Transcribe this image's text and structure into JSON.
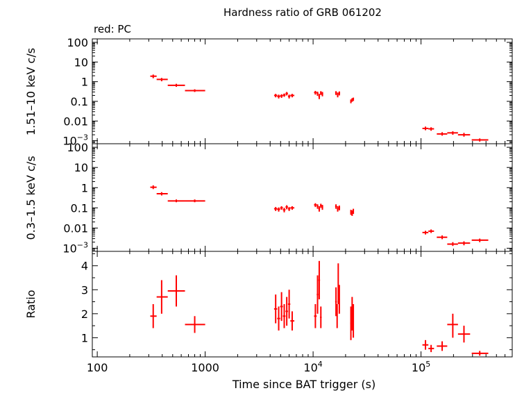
{
  "title": "Hardness ratio of GRB 061202",
  "annotation": "red: PC",
  "colors": {
    "data": "#ff0000",
    "axes": "#000000"
  },
  "chart_data": [
    {
      "type": "scatter",
      "panel": "hard",
      "ylabel": "1.51–10 keV c/s",
      "xscale": "log",
      "yscale": "log",
      "xlim": [
        90,
        700000
      ],
      "ylim": [
        0.0007,
        150
      ],
      "yticks": [
        {
          "v": 100,
          "base": "100",
          "sup": ""
        },
        {
          "v": 10,
          "base": "10",
          "sup": ""
        },
        {
          "v": 1,
          "base": "1",
          "sup": ""
        },
        {
          "v": 0.1,
          "base": "0.1",
          "sup": ""
        },
        {
          "v": 0.01,
          "base": "0.01",
          "sup": ""
        },
        {
          "v": 0.001,
          "base": "10",
          "sup": "−3"
        }
      ],
      "points": [
        {
          "x": 330,
          "xlo": 310,
          "xhi": 355,
          "y": 1.9,
          "ylo": 1.5,
          "yhi": 2.3
        },
        {
          "x": 395,
          "xlo": 355,
          "xhi": 450,
          "y": 1.3,
          "ylo": 1.05,
          "yhi": 1.55
        },
        {
          "x": 540,
          "xlo": 450,
          "xhi": 650,
          "y": 0.65,
          "ylo": 0.55,
          "yhi": 0.78
        },
        {
          "x": 800,
          "xlo": 650,
          "xhi": 1000,
          "y": 0.35,
          "ylo": 0.3,
          "yhi": 0.41
        },
        {
          "x": 4500,
          "xlo": 4350,
          "xhi": 4650,
          "y": 0.2,
          "ylo": 0.16,
          "yhi": 0.24
        },
        {
          "x": 4800,
          "xlo": 4650,
          "xhi": 4950,
          "y": 0.18,
          "ylo": 0.14,
          "yhi": 0.22
        },
        {
          "x": 5100,
          "xlo": 4950,
          "xhi": 5250,
          "y": 0.19,
          "ylo": 0.15,
          "yhi": 0.23
        },
        {
          "x": 5400,
          "xlo": 5250,
          "xhi": 5550,
          "y": 0.21,
          "ylo": 0.17,
          "yhi": 0.25
        },
        {
          "x": 5700,
          "xlo": 5550,
          "xhi": 5850,
          "y": 0.25,
          "ylo": 0.2,
          "yhi": 0.3
        },
        {
          "x": 6000,
          "xlo": 5850,
          "xhi": 6150,
          "y": 0.18,
          "ylo": 0.14,
          "yhi": 0.22
        },
        {
          "x": 6400,
          "xlo": 6150,
          "xhi": 6700,
          "y": 0.2,
          "ylo": 0.16,
          "yhi": 0.24
        },
        {
          "x": 10500,
          "xlo": 10200,
          "xhi": 10800,
          "y": 0.28,
          "ylo": 0.22,
          "yhi": 0.34
        },
        {
          "x": 11000,
          "xlo": 10800,
          "xhi": 11200,
          "y": 0.25,
          "ylo": 0.19,
          "yhi": 0.31
        },
        {
          "x": 11400,
          "xlo": 11200,
          "xhi": 11600,
          "y": 0.18,
          "ylo": 0.13,
          "yhi": 0.24
        },
        {
          "x": 11800,
          "xlo": 11600,
          "xhi": 12000,
          "y": 0.27,
          "ylo": 0.21,
          "yhi": 0.33
        },
        {
          "x": 12200,
          "xlo": 12000,
          "xhi": 12400,
          "y": 0.24,
          "ylo": 0.18,
          "yhi": 0.3
        },
        {
          "x": 16300,
          "xlo": 16000,
          "xhi": 16600,
          "y": 0.27,
          "ylo": 0.21,
          "yhi": 0.33
        },
        {
          "x": 16900,
          "xlo": 16600,
          "xhi": 17200,
          "y": 0.22,
          "ylo": 0.16,
          "yhi": 0.28
        },
        {
          "x": 17500,
          "xlo": 17200,
          "xhi": 17800,
          "y": 0.26,
          "ylo": 0.2,
          "yhi": 0.32
        },
        {
          "x": 22400,
          "xlo": 22100,
          "xhi": 22700,
          "y": 0.1,
          "ylo": 0.08,
          "yhi": 0.125
        },
        {
          "x": 23000,
          "xlo": 22700,
          "xhi": 23300,
          "y": 0.12,
          "ylo": 0.095,
          "yhi": 0.145
        },
        {
          "x": 23600,
          "xlo": 23300,
          "xhi": 23900,
          "y": 0.13,
          "ylo": 0.105,
          "yhi": 0.155
        },
        {
          "x": 110000,
          "xlo": 103000,
          "xhi": 117000,
          "y": 0.0042,
          "ylo": 0.0034,
          "yhi": 0.0052
        },
        {
          "x": 124000,
          "xlo": 117000,
          "xhi": 132000,
          "y": 0.004,
          "ylo": 0.0032,
          "yhi": 0.0048
        },
        {
          "x": 157000,
          "xlo": 140000,
          "xhi": 175000,
          "y": 0.0022,
          "ylo": 0.0018,
          "yhi": 0.0027
        },
        {
          "x": 197000,
          "xlo": 175000,
          "xhi": 220000,
          "y": 0.0025,
          "ylo": 0.002,
          "yhi": 0.003
        },
        {
          "x": 250000,
          "xlo": 220000,
          "xhi": 285000,
          "y": 0.002,
          "ylo": 0.0016,
          "yhi": 0.0025
        },
        {
          "x": 350000,
          "xlo": 295000,
          "xhi": 420000,
          "y": 0.0011,
          "ylo": 0.0009,
          "yhi": 0.0013
        }
      ]
    },
    {
      "type": "scatter",
      "panel": "soft",
      "ylabel": "0.3–1.5 keV c/s",
      "xscale": "log",
      "yscale": "log",
      "xlim": [
        90,
        700000
      ],
      "ylim": [
        0.0007,
        150
      ],
      "yticks": [
        {
          "v": 100,
          "base": "100",
          "sup": ""
        },
        {
          "v": 10,
          "base": "10",
          "sup": ""
        },
        {
          "v": 1,
          "base": "1",
          "sup": ""
        },
        {
          "v": 0.1,
          "base": "0.1",
          "sup": ""
        },
        {
          "v": 0.01,
          "base": "0.01",
          "sup": ""
        },
        {
          "v": 0.001,
          "base": "10",
          "sup": "−3"
        }
      ],
      "points": [
        {
          "x": 330,
          "xlo": 310,
          "xhi": 355,
          "y": 1.05,
          "ylo": 0.85,
          "yhi": 1.3
        },
        {
          "x": 395,
          "xlo": 355,
          "xhi": 450,
          "y": 0.5,
          "ylo": 0.41,
          "yhi": 0.6
        },
        {
          "x": 540,
          "xlo": 450,
          "xhi": 650,
          "y": 0.22,
          "ylo": 0.19,
          "yhi": 0.26
        },
        {
          "x": 800,
          "xlo": 650,
          "xhi": 1000,
          "y": 0.22,
          "ylo": 0.19,
          "yhi": 0.26
        },
        {
          "x": 4500,
          "xlo": 4350,
          "xhi": 4650,
          "y": 0.09,
          "ylo": 0.07,
          "yhi": 0.11
        },
        {
          "x": 4800,
          "xlo": 4650,
          "xhi": 4950,
          "y": 0.085,
          "ylo": 0.065,
          "yhi": 0.105
        },
        {
          "x": 5100,
          "xlo": 4950,
          "xhi": 5250,
          "y": 0.1,
          "ylo": 0.08,
          "yhi": 0.12
        },
        {
          "x": 5400,
          "xlo": 5250,
          "xhi": 5550,
          "y": 0.08,
          "ylo": 0.06,
          "yhi": 0.1
        },
        {
          "x": 5700,
          "xlo": 5550,
          "xhi": 5850,
          "y": 0.11,
          "ylo": 0.085,
          "yhi": 0.135
        },
        {
          "x": 6000,
          "xlo": 5850,
          "xhi": 6150,
          "y": 0.09,
          "ylo": 0.07,
          "yhi": 0.11
        },
        {
          "x": 6400,
          "xlo": 6150,
          "xhi": 6700,
          "y": 0.1,
          "ylo": 0.08,
          "yhi": 0.12
        },
        {
          "x": 10500,
          "xlo": 10200,
          "xhi": 10800,
          "y": 0.14,
          "ylo": 0.11,
          "yhi": 0.17
        },
        {
          "x": 11000,
          "xlo": 10800,
          "xhi": 11200,
          "y": 0.12,
          "ylo": 0.09,
          "yhi": 0.15
        },
        {
          "x": 11400,
          "xlo": 11200,
          "xhi": 11600,
          "y": 0.09,
          "ylo": 0.065,
          "yhi": 0.12
        },
        {
          "x": 11800,
          "xlo": 11600,
          "xhi": 12000,
          "y": 0.13,
          "ylo": 0.1,
          "yhi": 0.16
        },
        {
          "x": 12200,
          "xlo": 12000,
          "xhi": 12400,
          "y": 0.11,
          "ylo": 0.08,
          "yhi": 0.14
        },
        {
          "x": 16300,
          "xlo": 16000,
          "xhi": 16600,
          "y": 0.12,
          "ylo": 0.09,
          "yhi": 0.15
        },
        {
          "x": 16900,
          "xlo": 16600,
          "xhi": 17200,
          "y": 0.09,
          "ylo": 0.065,
          "yhi": 0.12
        },
        {
          "x": 17500,
          "xlo": 17200,
          "xhi": 17800,
          "y": 0.1,
          "ylo": 0.075,
          "yhi": 0.13
        },
        {
          "x": 22400,
          "xlo": 22100,
          "xhi": 22700,
          "y": 0.06,
          "ylo": 0.045,
          "yhi": 0.08
        },
        {
          "x": 23000,
          "xlo": 22700,
          "xhi": 23300,
          "y": 0.055,
          "ylo": 0.04,
          "yhi": 0.075
        },
        {
          "x": 23600,
          "xlo": 23300,
          "xhi": 23900,
          "y": 0.07,
          "ylo": 0.05,
          "yhi": 0.09
        },
        {
          "x": 110000,
          "xlo": 103000,
          "xhi": 117000,
          "y": 0.006,
          "ylo": 0.0048,
          "yhi": 0.0073
        },
        {
          "x": 124000,
          "xlo": 117000,
          "xhi": 132000,
          "y": 0.007,
          "ylo": 0.0057,
          "yhi": 0.0085
        },
        {
          "x": 157000,
          "xlo": 140000,
          "xhi": 175000,
          "y": 0.0035,
          "ylo": 0.0028,
          "yhi": 0.0043
        },
        {
          "x": 197000,
          "xlo": 175000,
          "xhi": 220000,
          "y": 0.0016,
          "ylo": 0.0013,
          "yhi": 0.002
        },
        {
          "x": 250000,
          "xlo": 220000,
          "xhi": 285000,
          "y": 0.0018,
          "ylo": 0.0014,
          "yhi": 0.0022
        },
        {
          "x": 350000,
          "xlo": 295000,
          "xhi": 420000,
          "y": 0.0025,
          "ylo": 0.002,
          "yhi": 0.003
        }
      ]
    },
    {
      "type": "scatter",
      "panel": "ratio",
      "ylabel": "Ratio",
      "xlabel": "Time since BAT trigger (s)",
      "xscale": "log",
      "yscale": "linear",
      "xlim": [
        90,
        700000
      ],
      "ylim": [
        0.2,
        4.6
      ],
      "xticks": [
        {
          "v": 100,
          "base": "100",
          "sup": ""
        },
        {
          "v": 1000,
          "base": "1000",
          "sup": ""
        },
        {
          "v": 10000,
          "base": "10",
          "sup": "4"
        },
        {
          "v": 100000,
          "base": "10",
          "sup": "5"
        }
      ],
      "yticks": [
        {
          "v": 1,
          "base": "1",
          "sup": ""
        },
        {
          "v": 2,
          "base": "2",
          "sup": ""
        },
        {
          "v": 3,
          "base": "3",
          "sup": ""
        },
        {
          "v": 4,
          "base": "4",
          "sup": ""
        }
      ],
      "points": [
        {
          "x": 330,
          "xlo": 310,
          "xhi": 355,
          "y": 1.9,
          "ylo": 1.4,
          "yhi": 2.4
        },
        {
          "x": 395,
          "xlo": 355,
          "xhi": 450,
          "y": 2.7,
          "ylo": 2.0,
          "yhi": 3.4
        },
        {
          "x": 540,
          "xlo": 450,
          "xhi": 650,
          "y": 2.95,
          "ylo": 2.3,
          "yhi": 3.6
        },
        {
          "x": 800,
          "xlo": 650,
          "xhi": 1000,
          "y": 1.55,
          "ylo": 1.2,
          "yhi": 1.9
        },
        {
          "x": 4500,
          "xlo": 4350,
          "xhi": 4650,
          "y": 2.2,
          "ylo": 1.6,
          "yhi": 2.8
        },
        {
          "x": 4800,
          "xlo": 4650,
          "xhi": 4950,
          "y": 1.8,
          "ylo": 1.3,
          "yhi": 2.3
        },
        {
          "x": 5100,
          "xlo": 4950,
          "xhi": 5250,
          "y": 2.3,
          "ylo": 1.7,
          "yhi": 2.9
        },
        {
          "x": 5400,
          "xlo": 5250,
          "xhi": 5550,
          "y": 1.9,
          "ylo": 1.4,
          "yhi": 2.4
        },
        {
          "x": 5700,
          "xlo": 5550,
          "xhi": 5850,
          "y": 2.1,
          "ylo": 1.5,
          "yhi": 2.7
        },
        {
          "x": 6000,
          "xlo": 5850,
          "xhi": 6150,
          "y": 2.4,
          "ylo": 1.8,
          "yhi": 3.0
        },
        {
          "x": 6400,
          "xlo": 6150,
          "xhi": 6700,
          "y": 1.7,
          "ylo": 1.3,
          "yhi": 2.1
        },
        {
          "x": 10500,
          "xlo": 10200,
          "xhi": 10800,
          "y": 1.9,
          "ylo": 1.4,
          "yhi": 2.4
        },
        {
          "x": 11000,
          "xlo": 10800,
          "xhi": 11200,
          "y": 2.8,
          "ylo": 2.0,
          "yhi": 3.6
        },
        {
          "x": 11400,
          "xlo": 11200,
          "xhi": 11600,
          "y": 3.4,
          "ylo": 2.6,
          "yhi": 4.2
        },
        {
          "x": 11800,
          "xlo": 11600,
          "xhi": 12000,
          "y": 1.85,
          "ylo": 1.4,
          "yhi": 2.3
        },
        {
          "x": 16300,
          "xlo": 16000,
          "xhi": 16600,
          "y": 2.5,
          "ylo": 1.9,
          "yhi": 3.1
        },
        {
          "x": 16700,
          "xlo": 16500,
          "xhi": 16900,
          "y": 1.9,
          "ylo": 1.4,
          "yhi": 2.4
        },
        {
          "x": 17100,
          "xlo": 16900,
          "xhi": 17300,
          "y": 3.2,
          "ylo": 2.4,
          "yhi": 4.1
        },
        {
          "x": 17500,
          "xlo": 17300,
          "xhi": 17700,
          "y": 2.6,
          "ylo": 2.0,
          "yhi": 3.2
        },
        {
          "x": 22400,
          "xlo": 22100,
          "xhi": 22700,
          "y": 1.6,
          "ylo": 0.9,
          "yhi": 2.3
        },
        {
          "x": 23000,
          "xlo": 22700,
          "xhi": 23300,
          "y": 2.0,
          "ylo": 1.3,
          "yhi": 2.7
        },
        {
          "x": 23600,
          "xlo": 23300,
          "xhi": 23900,
          "y": 1.7,
          "ylo": 1.0,
          "yhi": 2.4
        },
        {
          "x": 110000,
          "xlo": 103000,
          "xhi": 117000,
          "y": 0.7,
          "ylo": 0.5,
          "yhi": 0.9
        },
        {
          "x": 124000,
          "xlo": 117000,
          "xhi": 132000,
          "y": 0.55,
          "ylo": 0.4,
          "yhi": 0.7
        },
        {
          "x": 157000,
          "xlo": 140000,
          "xhi": 175000,
          "y": 0.65,
          "ylo": 0.45,
          "yhi": 0.85
        },
        {
          "x": 197000,
          "xlo": 175000,
          "xhi": 220000,
          "y": 1.55,
          "ylo": 1.0,
          "yhi": 2.0
        },
        {
          "x": 250000,
          "xlo": 220000,
          "xhi": 285000,
          "y": 1.15,
          "ylo": 0.8,
          "yhi": 1.5
        },
        {
          "x": 350000,
          "xlo": 295000,
          "xhi": 420000,
          "y": 0.35,
          "ylo": 0.25,
          "yhi": 0.45
        }
      ]
    }
  ]
}
